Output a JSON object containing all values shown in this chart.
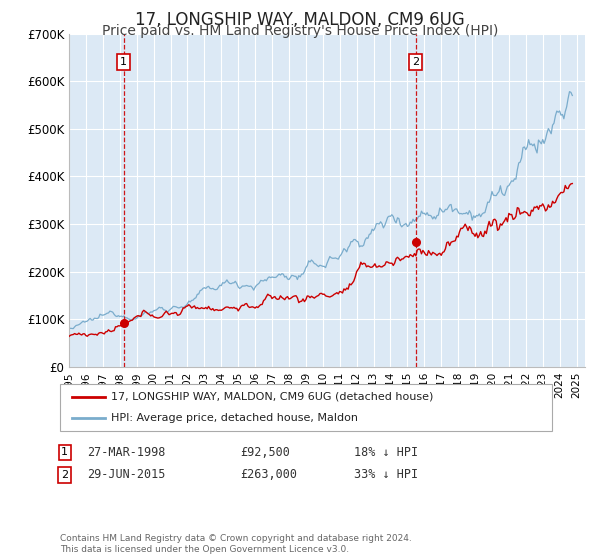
{
  "title": "17, LONGSHIP WAY, MALDON, CM9 6UG",
  "subtitle": "Price paid vs. HM Land Registry's House Price Index (HPI)",
  "title_fontsize": 12,
  "subtitle_fontsize": 10,
  "background_color": "#ffffff",
  "plot_bg_color": "#dce9f5",
  "grid_color": "#ffffff",
  "xmin": 1995.0,
  "xmax": 2025.5,
  "ymin": 0,
  "ymax": 700000,
  "yticks": [
    0,
    100000,
    200000,
    300000,
    400000,
    500000,
    600000,
    700000
  ],
  "ytick_labels": [
    "£0",
    "£100K",
    "£200K",
    "£300K",
    "£400K",
    "£500K",
    "£600K",
    "£700K"
  ],
  "xtick_years": [
    1995,
    1996,
    1997,
    1998,
    1999,
    2000,
    2001,
    2002,
    2003,
    2004,
    2005,
    2006,
    2007,
    2008,
    2009,
    2010,
    2011,
    2012,
    2013,
    2014,
    2015,
    2016,
    2017,
    2018,
    2019,
    2020,
    2021,
    2022,
    2023,
    2024,
    2025
  ],
  "red_line_color": "#cc0000",
  "blue_line_color": "#7aaccc",
  "dashed_line_color": "#cc0000",
  "marker_color": "#cc0000",
  "sale1_x": 1998.23,
  "sale1_y": 92500,
  "sale1_label": "1",
  "sale2_x": 2015.49,
  "sale2_y": 263000,
  "sale2_label": "2",
  "legend_red_label": "17, LONGSHIP WAY, MALDON, CM9 6UG (detached house)",
  "legend_blue_label": "HPI: Average price, detached house, Maldon",
  "annotation1_date": "27-MAR-1998",
  "annotation1_price": "£92,500",
  "annotation1_pct": "18% ↓ HPI",
  "annotation2_date": "29-JUN-2015",
  "annotation2_price": "£263,000",
  "annotation2_pct": "33% ↓ HPI",
  "footer": "Contains HM Land Registry data © Crown copyright and database right 2024.\nThis data is licensed under the Open Government Licence v3.0."
}
